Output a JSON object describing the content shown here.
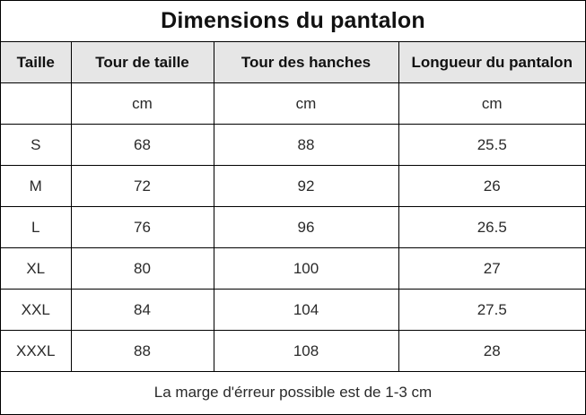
{
  "title": "Dimensions du pantalon",
  "headers": [
    "Taille",
    "Tour de taille",
    "Tour des hanches",
    "Longueur du pantalon"
  ],
  "units": [
    "",
    "cm",
    "cm",
    "cm"
  ],
  "rows": [
    [
      "S",
      "68",
      "88",
      "25.5"
    ],
    [
      "M",
      "72",
      "92",
      "26"
    ],
    [
      "L",
      "76",
      "96",
      "26.5"
    ],
    [
      "XL",
      "80",
      "100",
      "27"
    ],
    [
      "XXL",
      "84",
      "104",
      "27.5"
    ],
    [
      "XXXL",
      "88",
      "108",
      "28"
    ]
  ],
  "footnote": "La marge d'érreur possible est de 1-3 cm",
  "colors": {
    "header_bg": "#e6e6e6",
    "border": "#000000",
    "background": "#ffffff"
  }
}
